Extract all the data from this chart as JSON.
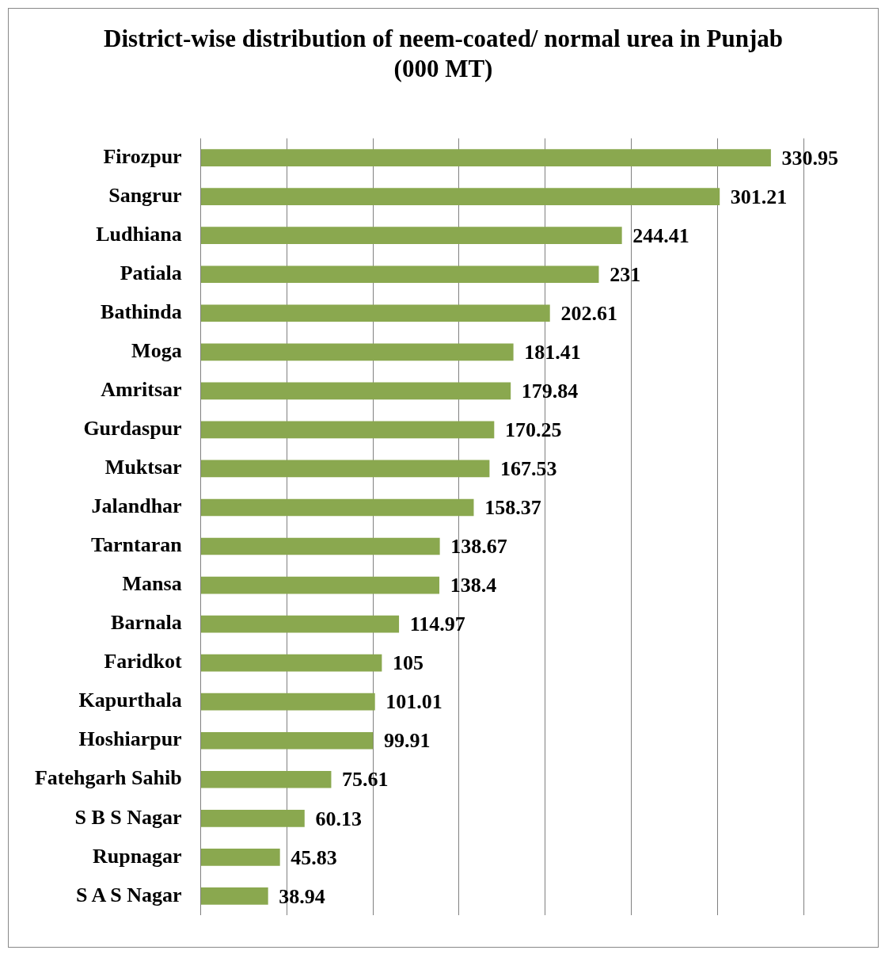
{
  "chart_data": {
    "type": "bar",
    "orientation": "horizontal",
    "title": "District-wise distribution of neem-coated/ normal urea in Punjab (000 MT)",
    "categories": [
      "Firozpur",
      "Sangrur",
      "Ludhiana",
      "Patiala",
      "Bathinda",
      "Moga",
      "Amritsar",
      "Gurdaspur",
      "Muktsar",
      "Jalandhar",
      "Tarntaran",
      "Mansa",
      "Barnala",
      "Faridkot",
      "Kapurthala",
      "Hoshiarpur",
      "Fatehgarh Sahib",
      "S B S Nagar",
      "Rupnagar",
      "S A S Nagar"
    ],
    "values": [
      330.95,
      301.21,
      244.41,
      231,
      202.61,
      181.41,
      179.84,
      170.25,
      167.53,
      158.37,
      138.67,
      138.4,
      114.97,
      105,
      101.01,
      99.91,
      75.61,
      60.13,
      45.83,
      38.94
    ],
    "color": "#8aa84f",
    "data_labels": true,
    "grid": "x",
    "tick_labels": "y",
    "legend": false,
    "xlim": [
      0,
      350
    ],
    "xticks": [
      {
        "value": 0,
        "label": null
      },
      {
        "value": 50,
        "label": null
      },
      {
        "value": 100,
        "label": null
      },
      {
        "value": 150,
        "label": null
      },
      {
        "value": 200,
        "label": null
      },
      {
        "value": 250,
        "label": null
      },
      {
        "value": 300,
        "label": null
      },
      {
        "value": 350,
        "label": null
      }
    ]
  }
}
